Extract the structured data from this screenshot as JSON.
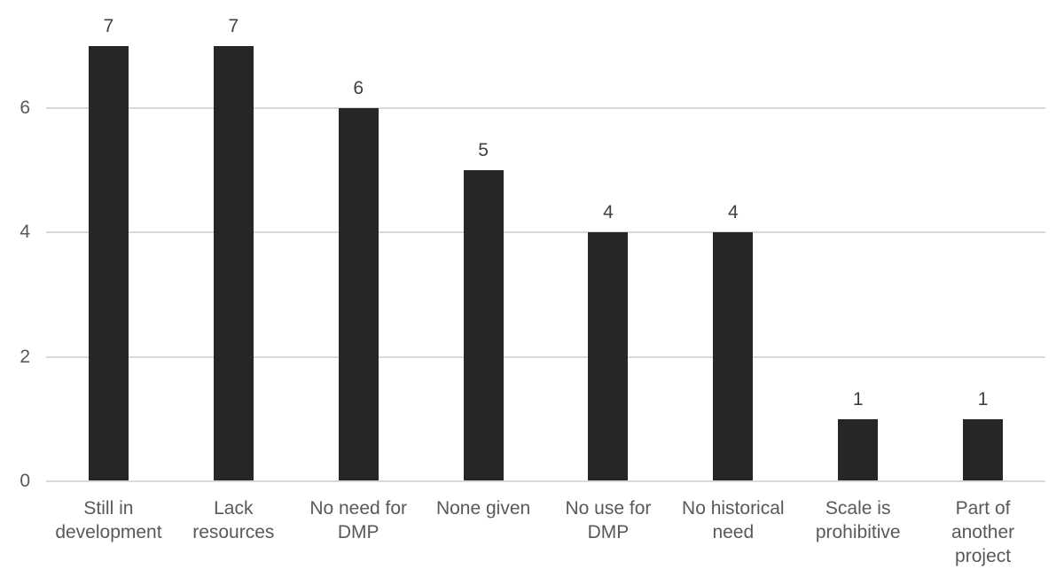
{
  "chart_data": {
    "type": "bar",
    "categories": [
      "Still in development",
      "Lack resources",
      "No need for DMP",
      "None given",
      "No use for DMP",
      "No historical need",
      "Scale is prohibitive",
      "Part of another project"
    ],
    "values": [
      7,
      7,
      6,
      5,
      4,
      4,
      1,
      1
    ],
    "data_labels": [
      "7",
      "7",
      "6",
      "5",
      "4",
      "4",
      "1",
      "1"
    ],
    "title": "",
    "xlabel": "",
    "ylabel": "",
    "ylim": [
      0,
      7
    ],
    "yticks": [
      0,
      2,
      4,
      6
    ],
    "ytick_labels": [
      "0",
      "2",
      "4",
      "6"
    ],
    "gridlines": "horizontal",
    "legend": "none",
    "colors": {
      "bar": "#262626",
      "gridline": "#d9d9d9",
      "axis_line": "#d9d9d9",
      "ytick_label": "#595959",
      "category_label": "#595959",
      "data_label": "#404040",
      "background": "#ffffff"
    }
  }
}
